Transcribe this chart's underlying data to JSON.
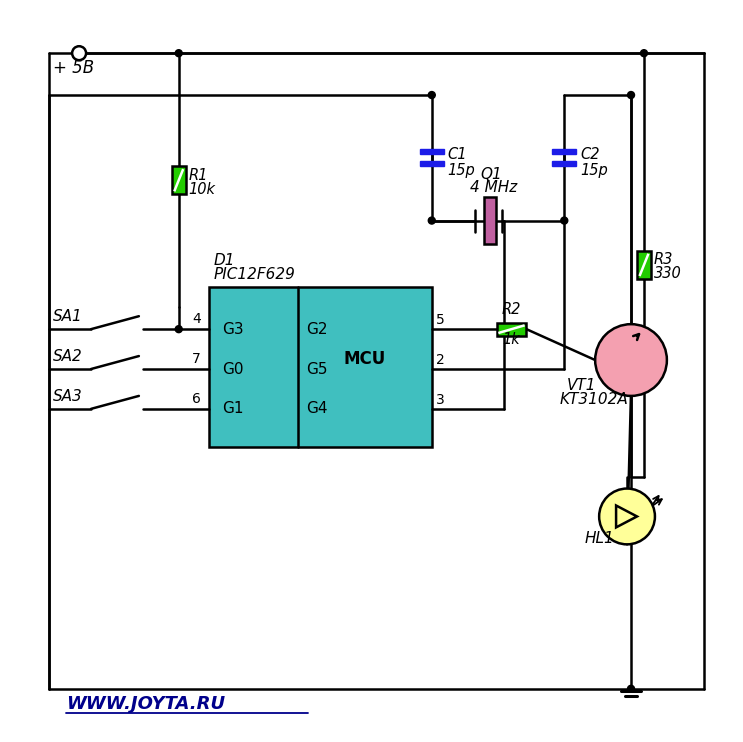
{
  "bg": "#ffffff",
  "lc": "#000000",
  "lw": 1.8,
  "mcu_fill": "#40BFBF",
  "res_fill": "#22CC00",
  "cap_fill": "#1C1CE8",
  "xtal_fill": "#C060A0",
  "tr_fill": "#F4A0B0",
  "led_fill": "#FFFF99",
  "web_color": "#00008B",
  "plus5v": "+ 5B",
  "d1": "D1",
  "d1s": "PIC12F629",
  "r1": "R1",
  "r1v": "10k",
  "r2": "R2",
  "r2v": "1k",
  "r3": "R3",
  "r3v": "330",
  "c1": "C1",
  "c1v": "15p",
  "c2": "C2",
  "c2v": "15p",
  "q1": "Q1",
  "q1v": "4 MHz",
  "hl1": "HL1",
  "vt1": "VT1",
  "vt1v": "KT3102A",
  "sa1": "SA1",
  "sa2": "SA2",
  "sa3": "SA3",
  "mcu_lbl": "MCU",
  "pg3": "G3",
  "pg0": "G0",
  "pg1": "G1",
  "pg2": "G2",
  "pg5": "G5",
  "pg4": "G4",
  "p4": "4",
  "p7": "7",
  "p6": "6",
  "p5": "5",
  "p2": "2",
  "p3": "3",
  "web": "WWW.JOYTA.RU",
  "BL": 48,
  "BR": 705,
  "BT": 690,
  "BB": 52
}
